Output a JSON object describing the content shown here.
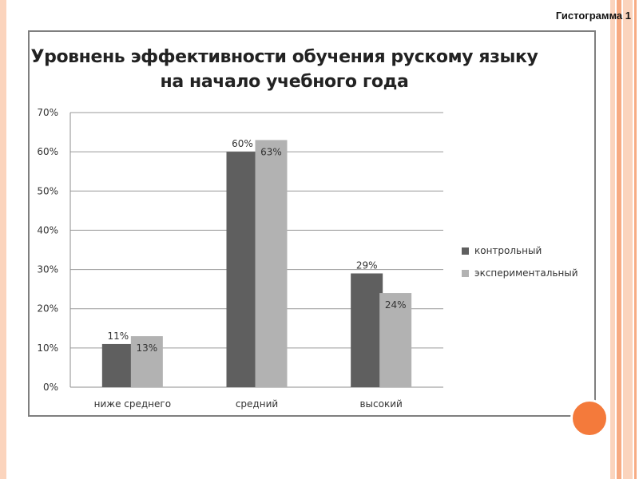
{
  "slide": {
    "label": "Гистограмма 1"
  },
  "colors": {
    "background": "#ffffff",
    "accent_orange": "#f47a3b",
    "stripe_light": "#fbd4bd",
    "stripe_mid": "#f7ab83",
    "frame_border": "#7f7f7f"
  },
  "chart_data": {
    "type": "bar",
    "title": "Уровнень эффективности обучения рускому языку на начало учебного года",
    "xlabel": "",
    "ylabel": "",
    "categories": [
      "ниже среднего",
      "средний",
      "высокий"
    ],
    "series": [
      {
        "name": "контрольный",
        "values": [
          11,
          60,
          29
        ],
        "labels": [
          "11%",
          "60%",
          "29%"
        ],
        "color": "#5f5f5f"
      },
      {
        "name": "экспериментальный",
        "values": [
          13,
          63,
          24
        ],
        "labels": [
          "13%",
          "63%",
          "24%"
        ],
        "color": "#b2b2b2"
      }
    ],
    "ylim": [
      0,
      70
    ],
    "yticks": [
      "0%",
      "10%",
      "20%",
      "30%",
      "40%",
      "50%",
      "60%",
      "70%"
    ],
    "grid": true,
    "legend_position": "right"
  }
}
